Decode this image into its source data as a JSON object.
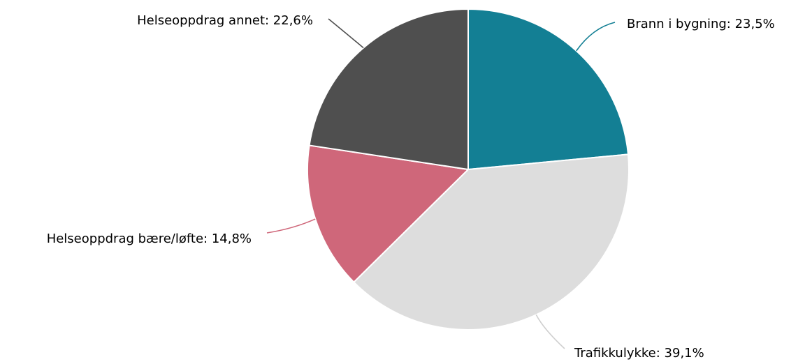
{
  "chart_data": {
    "type": "pie",
    "start_angle": "12 o'clock",
    "direction": "clockwise",
    "grid": false,
    "legend": "none",
    "slices": [
      {
        "label": "Brann i bygning",
        "value": 23.5,
        "display": "Brann i bygning: 23,5%",
        "color": "#137f94"
      },
      {
        "label": "Trafikkulykke",
        "value": 39.1,
        "display": "Trafikkulykke: 39,1%",
        "color": "#dddddd"
      },
      {
        "label": "Helseoppdrag bære/løfte",
        "value": 14.8,
        "display": "Helseoppdrag bære/løfte: 14,8%",
        "color": "#cf677a"
      },
      {
        "label": "Helseoppdrag annet",
        "value": 22.6,
        "display": "Helseoppdrag annet: 22,6%",
        "color": "#4f4f4f"
      }
    ]
  }
}
